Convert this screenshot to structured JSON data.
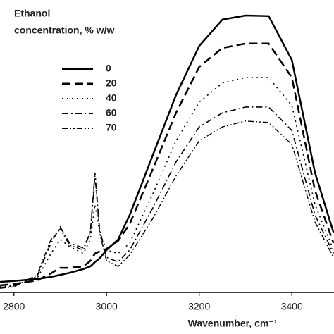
{
  "chart_data": {
    "type": "line",
    "xlabel": "Wavenumber, cm⁻¹",
    "legend_title": [
      "Ethanol",
      "concentration, % w/w"
    ],
    "legend": "upper left",
    "x": [
      2770,
      2800,
      2850,
      2880,
      2900,
      2920,
      2950,
      2965,
      2975,
      2985,
      3000,
      3025,
      3050,
      3100,
      3150,
      3200,
      3250,
      3300,
      3350,
      3400,
      3450,
      3490
    ],
    "xlim": [
      2770,
      3491
    ],
    "xticks": [
      2800,
      3000,
      3200,
      3400
    ],
    "ylim": [
      0,
      100
    ],
    "series": [
      {
        "name": "0",
        "color": "#000000",
        "dash": "solid",
        "values": [
          3.6,
          3.9,
          4.6,
          5.3,
          6.0,
          6.7,
          8.0,
          8.9,
          10.4,
          11.6,
          14.5,
          18.1,
          26.5,
          47.0,
          67.5,
          84.3,
          93.3,
          94.7,
          94.5,
          79.5,
          41.0,
          20.5
        ]
      },
      {
        "name": "20",
        "color": "#000000",
        "dash": "dashed",
        "values": [
          2.4,
          2.9,
          4.1,
          6.5,
          8.4,
          8.4,
          8.9,
          10.8,
          13.3,
          14.0,
          14.9,
          17.6,
          23.4,
          42.2,
          61.4,
          77.1,
          83.6,
          85.1,
          85.1,
          73.5,
          34.9,
          16.9
        ]
      },
      {
        "name": "40",
        "color": "#000000",
        "dash": "dotted",
        "values": [
          1.9,
          2.4,
          4.8,
          13.3,
          18.1,
          15.7,
          13.3,
          18.1,
          30.1,
          20.5,
          14.5,
          13.3,
          16.9,
          33.7,
          51.8,
          65.1,
          71.6,
          73.5,
          73.5,
          63.9,
          30.1,
          14.5
        ]
      },
      {
        "name": "60",
        "color": "#000000",
        "dash": "dashdot",
        "values": [
          1.7,
          2.2,
          5.5,
          16.9,
          22.4,
          16.9,
          15.2,
          20.5,
          41.0,
          21.7,
          12.0,
          10.4,
          14.5,
          28.9,
          44.6,
          56.6,
          61.4,
          63.4,
          63.4,
          55.4,
          26.5,
          13.3
        ]
      },
      {
        "name": "70",
        "color": "#000000",
        "dash": "dashdotdot",
        "values": [
          1.4,
          1.9,
          6.0,
          18.1,
          21.7,
          16.2,
          14.5,
          20.5,
          39.8,
          20.5,
          10.8,
          8.9,
          12.8,
          25.3,
          39.8,
          51.8,
          56.6,
          58.6,
          58.1,
          50.6,
          24.1,
          12.0
        ]
      }
    ]
  }
}
